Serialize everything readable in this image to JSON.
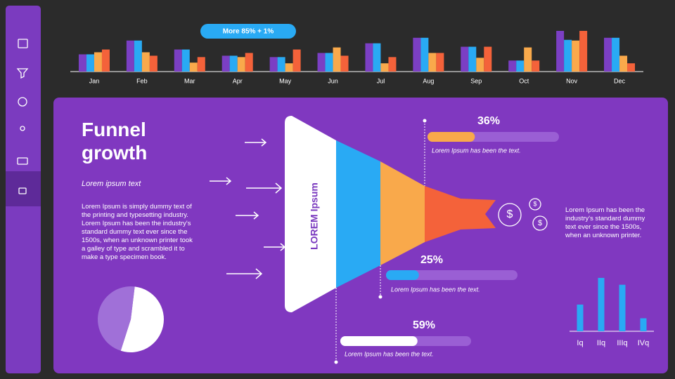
{
  "badge": "More 85% + 1%",
  "title": "Funnel growth",
  "subtitle": "Lorem ipsum text",
  "body": "Lorem Ipsum is simply dummy text of the printing and typesetting industry. Lorem Ipsum has been the industry's standard dummy text ever since the 1500s, when an unknown printer took a galley of type and scrambled it to make a type specimen book.",
  "funnel_label": "LOREM Ipsum",
  "note": "Lorem Ipsum has been the industry's standard dummy text ever since the 1500s, when an unknown printer.",
  "currency_symbol": "$",
  "chart_data": [
    {
      "type": "bar",
      "categories": [
        "Jan",
        "Feb",
        "Mar",
        "Apr",
        "May",
        "Jun",
        "Jul",
        "Aug",
        "Sep",
        "Oct",
        "Nov",
        "Dec"
      ],
      "series": [
        {
          "color": "#7b3fc4",
          "values": [
            25,
            45,
            32,
            23,
            21,
            27,
            41,
            49,
            36,
            16,
            59,
            49
          ]
        },
        {
          "color": "#29aaf4",
          "values": [
            25,
            45,
            32,
            23,
            21,
            27,
            41,
            49,
            36,
            16,
            46,
            49
          ]
        },
        {
          "color": "#f9a94b",
          "values": [
            28,
            28,
            13,
            21,
            12,
            35,
            12,
            27,
            20,
            35,
            45,
            23
          ]
        },
        {
          "color": "#f4623a",
          "values": [
            32,
            23,
            21,
            27,
            32,
            23,
            21,
            27,
            36,
            16,
            59,
            12
          ]
        }
      ],
      "ylim": [
        0,
        60
      ]
    },
    {
      "type": "progress",
      "categories": [
        "Lorem Ipsum has been the text.",
        "Lorem Ipsum has been the text.",
        "Lorem Ipsum has been the text."
      ],
      "values": [
        36,
        25,
        59
      ],
      "value_labels": [
        "36%",
        "25%",
        "59%"
      ],
      "colors": [
        "#f9a94b",
        "#29aaf4",
        "#ffffff"
      ],
      "ylim": [
        0,
        100
      ]
    },
    {
      "type": "pie",
      "values": [
        53,
        47
      ],
      "colors": [
        "#ffffff",
        "#a070d8"
      ]
    },
    {
      "type": "bar",
      "categories": [
        "Iq",
        "IIq",
        "IIIq",
        "IVq"
      ],
      "values": [
        39,
        78,
        68,
        19
      ],
      "color": "#29aaf4",
      "ylim": [
        0,
        80
      ]
    }
  ]
}
